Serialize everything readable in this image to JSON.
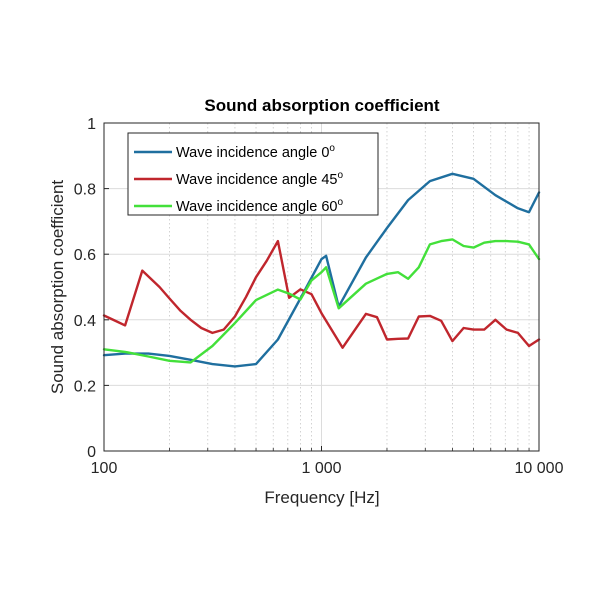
{
  "chart_data": {
    "type": "line",
    "title": "Sound absorption coefficient",
    "xlabel": "Frequency [Hz]",
    "ylabel": "Sound absorption coefficient",
    "x_scale": "log",
    "xlim": [
      100,
      10000
    ],
    "ylim": [
      0,
      1
    ],
    "x_ticks": [
      {
        "value": 100,
        "label": "100"
      },
      {
        "value": 1000,
        "label": "1 000"
      },
      {
        "value": 10000,
        "label": "10 000"
      }
    ],
    "y_ticks": [
      {
        "value": 0,
        "label": "0"
      },
      {
        "value": 0.2,
        "label": "0.2"
      },
      {
        "value": 0.4,
        "label": "0.4"
      },
      {
        "value": 0.6,
        "label": "0.6"
      },
      {
        "value": 0.8,
        "label": "0.8"
      },
      {
        "value": 1,
        "label": "1"
      }
    ],
    "grid": true,
    "minor_grid_x": true,
    "legend_position": "top-left",
    "series": [
      {
        "name": "Wave incidence angle 0",
        "name_sup": "o",
        "color": "#1f6f9f",
        "x": [
          100,
          125,
          160,
          200,
          250,
          315,
          400,
          500,
          630,
          800,
          1000,
          1050,
          1200,
          1600,
          2000,
          2500,
          3150,
          4000,
          5000,
          6300,
          8000,
          9000,
          10000
        ],
        "y": [
          0.292,
          0.297,
          0.297,
          0.29,
          0.278,
          0.265,
          0.258,
          0.265,
          0.34,
          0.465,
          0.585,
          0.595,
          0.44,
          0.59,
          0.68,
          0.765,
          0.823,
          0.845,
          0.83,
          0.78,
          0.74,
          0.728,
          0.788
        ]
      },
      {
        "name": "Wave incidence angle 45",
        "name_sup": "o",
        "color": "#c0262d",
        "x": [
          100,
          112,
          125,
          150,
          180,
          200,
          225,
          250,
          280,
          315,
          355,
          400,
          450,
          500,
          560,
          630,
          710,
          800,
          900,
          1000,
          1250,
          1600,
          1800,
          2000,
          2250,
          2500,
          2800,
          3150,
          3550,
          4000,
          4500,
          5000,
          5600,
          6300,
          7100,
          8000,
          9000,
          10000
        ],
        "y": [
          0.413,
          0.398,
          0.383,
          0.55,
          0.5,
          0.465,
          0.427,
          0.4,
          0.375,
          0.36,
          0.37,
          0.41,
          0.47,
          0.53,
          0.58,
          0.64,
          0.467,
          0.493,
          0.478,
          0.42,
          0.315,
          0.418,
          0.408,
          0.34,
          0.342,
          0.343,
          0.41,
          0.412,
          0.397,
          0.335,
          0.375,
          0.37,
          0.37,
          0.4,
          0.37,
          0.36,
          0.32,
          0.34
        ]
      },
      {
        "name": "Wave incidence angle 60",
        "name_sup": "o",
        "color": "#43e03a",
        "x": [
          100,
          125,
          160,
          200,
          250,
          315,
          400,
          500,
          630,
          710,
          800,
          900,
          1000,
          1050,
          1200,
          1600,
          2000,
          2250,
          2500,
          2800,
          3150,
          3550,
          4000,
          4500,
          5000,
          5600,
          6300,
          7100,
          8000,
          9000,
          10000
        ],
        "y": [
          0.31,
          0.302,
          0.288,
          0.275,
          0.27,
          0.32,
          0.39,
          0.46,
          0.492,
          0.48,
          0.462,
          0.52,
          0.545,
          0.56,
          0.435,
          0.51,
          0.54,
          0.545,
          0.525,
          0.56,
          0.63,
          0.64,
          0.645,
          0.625,
          0.62,
          0.635,
          0.64,
          0.64,
          0.638,
          0.63,
          0.585
        ]
      }
    ]
  }
}
